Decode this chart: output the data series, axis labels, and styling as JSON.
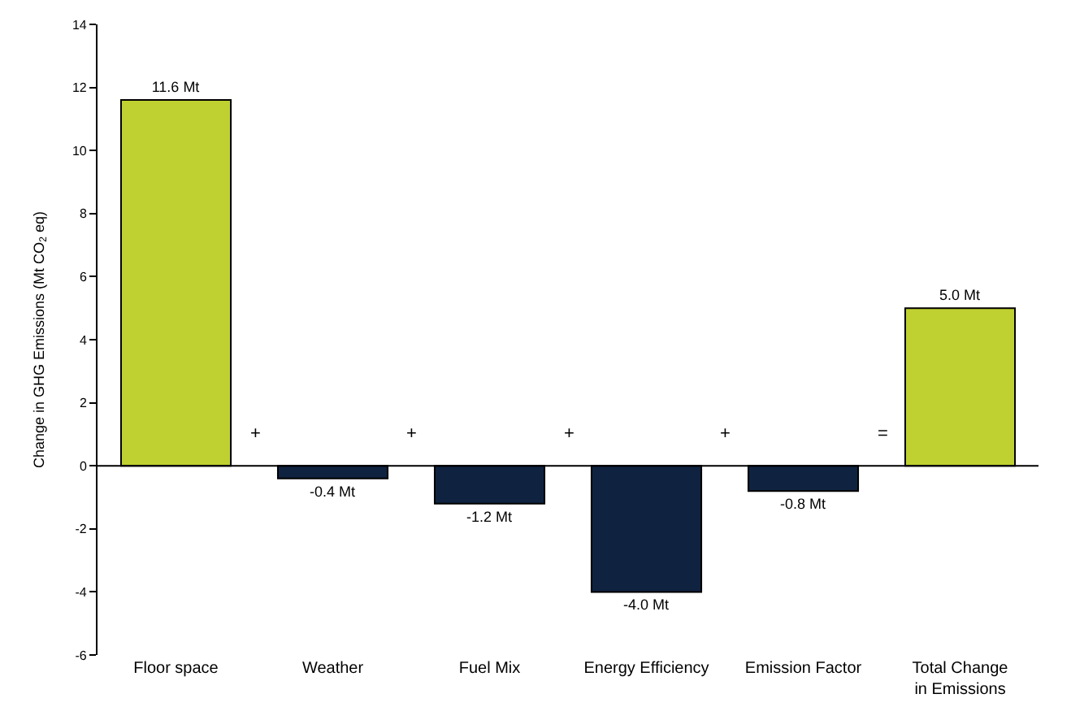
{
  "chart_data": {
    "type": "bar",
    "ylabel": "Change in GHG Emissions (Mt CO$_{2}$ eq)",
    "categories": [
      "Floor space",
      "Weather",
      "Fuel Mix",
      "Energy Efficiency",
      "Emission Factor",
      "Total Change in Emissions"
    ],
    "values": [
      11.6,
      -0.4,
      -1.2,
      -4.0,
      -0.8,
      5.0
    ],
    "colors": [
      "#bfd130",
      "#0f2340",
      "#0f2340",
      "#0f2340",
      "#0f2340",
      "#bfd130"
    ],
    "value_labels": [
      "11.6 Mt",
      "-0.4 Mt",
      "-1.2 Mt",
      "-4.0 Mt",
      "-0.8 Mt",
      "5.0 Mt"
    ],
    "ylim": [
      -6,
      14
    ],
    "yticks": [
      -6,
      -4,
      -2,
      0,
      2,
      4,
      6,
      8,
      10,
      12,
      14
    ],
    "annotations": [
      "+",
      "+",
      "+",
      "+",
      "="
    ]
  }
}
